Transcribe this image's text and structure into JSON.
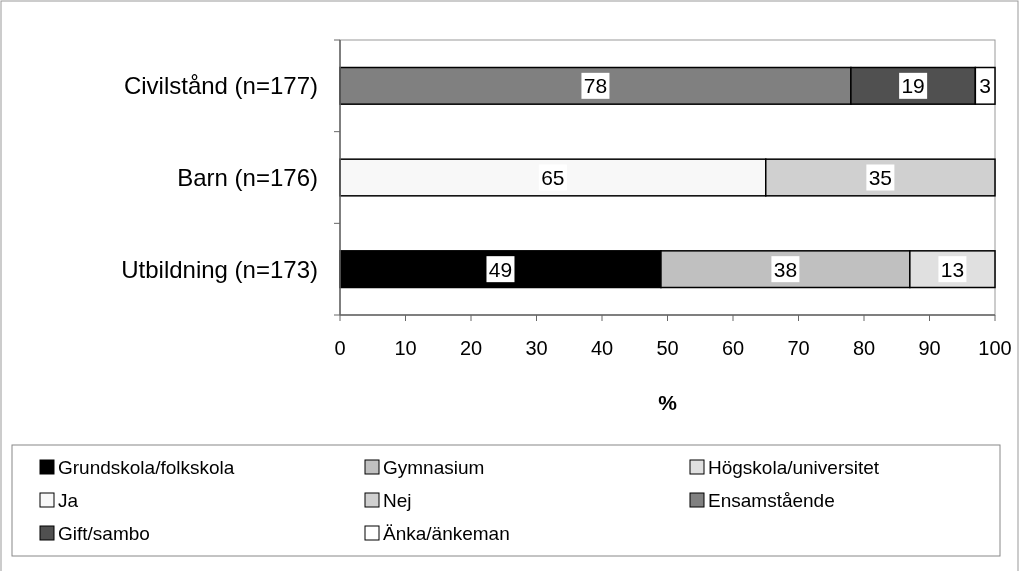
{
  "chart_data": {
    "type": "bar",
    "orientation": "horizontal",
    "stacked": true,
    "xlabel": "%",
    "categories": [
      "Civilstånd (n=177)",
      "Barn (n=176)",
      "Utbildning (n=173)"
    ],
    "series": [
      {
        "name": "Grundskola/folkskola",
        "color": "#000000",
        "values": [
          null,
          null,
          49
        ]
      },
      {
        "name": "Gymnasium",
        "color": "#c0c0c0",
        "values": [
          null,
          null,
          38
        ]
      },
      {
        "name": "Högskola/universitet",
        "color": "#e0e0e0",
        "values": [
          null,
          null,
          13
        ]
      },
      {
        "name": "Ja",
        "color": "#f8f8f8",
        "values": [
          null,
          65,
          null
        ]
      },
      {
        "name": "Nej",
        "color": "#d0d0d0",
        "values": [
          null,
          35,
          null
        ]
      },
      {
        "name": "Ensamstående",
        "color": "#808080",
        "values": [
          78,
          null,
          null
        ]
      },
      {
        "name": "Gift/sambo",
        "color": "#505050",
        "values": [
          19,
          null,
          null
        ]
      },
      {
        "name": "Änka/änkeman",
        "color": "#ffffff",
        "values": [
          3,
          null,
          null
        ]
      }
    ],
    "xlim": [
      0,
      100
    ],
    "xticks": [
      0,
      10,
      20,
      30,
      40,
      50,
      60,
      70,
      80,
      90,
      100
    ],
    "data_labels": true,
    "legend": "bottom"
  }
}
